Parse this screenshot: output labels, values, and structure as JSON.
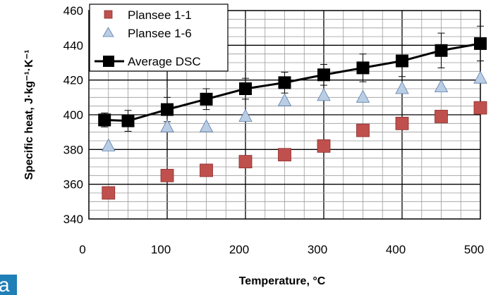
{
  "panel_label": "a",
  "chart_data": {
    "type": "scatter",
    "xlabel": "Temperature, °C",
    "ylabel": "Specific heat, J·kg⁻¹·K⁻¹",
    "xlim": [
      0,
      500
    ],
    "ylim": [
      340,
      460
    ],
    "xticks": [
      0,
      100,
      200,
      300,
      400,
      500
    ],
    "yticks": [
      340,
      360,
      380,
      400,
      420,
      440,
      460
    ],
    "grid": true,
    "legend_position": "top-left",
    "series": [
      {
        "name": "Plansee 1-1",
        "marker": "square",
        "color": "#c0504d",
        "points": [
          [
            25,
            355
          ],
          [
            100,
            365
          ],
          [
            150,
            368
          ],
          [
            200,
            373
          ],
          [
            250,
            377
          ],
          [
            300,
            382
          ],
          [
            350,
            391
          ],
          [
            400,
            395
          ],
          [
            450,
            399
          ],
          [
            500,
            404
          ]
        ]
      },
      {
        "name": "Plansee 1-6",
        "marker": "triangle",
        "color": "#b9cde5",
        "points": [
          [
            25,
            382
          ],
          [
            100,
            393
          ],
          [
            150,
            393
          ],
          [
            200,
            399
          ],
          [
            250,
            408
          ],
          [
            300,
            411
          ],
          [
            350,
            410
          ],
          [
            400,
            415
          ],
          [
            450,
            416
          ],
          [
            500,
            421
          ]
        ]
      },
      {
        "name": "Average DSC",
        "marker": "square",
        "color": "#000000",
        "line": true,
        "points": [
          [
            20,
            397,
            4
          ],
          [
            50,
            396.5,
            6
          ],
          [
            100,
            403,
            7
          ],
          [
            150,
            409,
            6
          ],
          [
            200,
            415,
            6
          ],
          [
            250,
            418.5,
            6
          ],
          [
            300,
            423,
            6
          ],
          [
            350,
            427,
            8
          ],
          [
            400,
            431,
            9
          ],
          [
            450,
            437,
            10
          ],
          [
            500,
            441,
            10
          ]
        ]
      }
    ]
  }
}
